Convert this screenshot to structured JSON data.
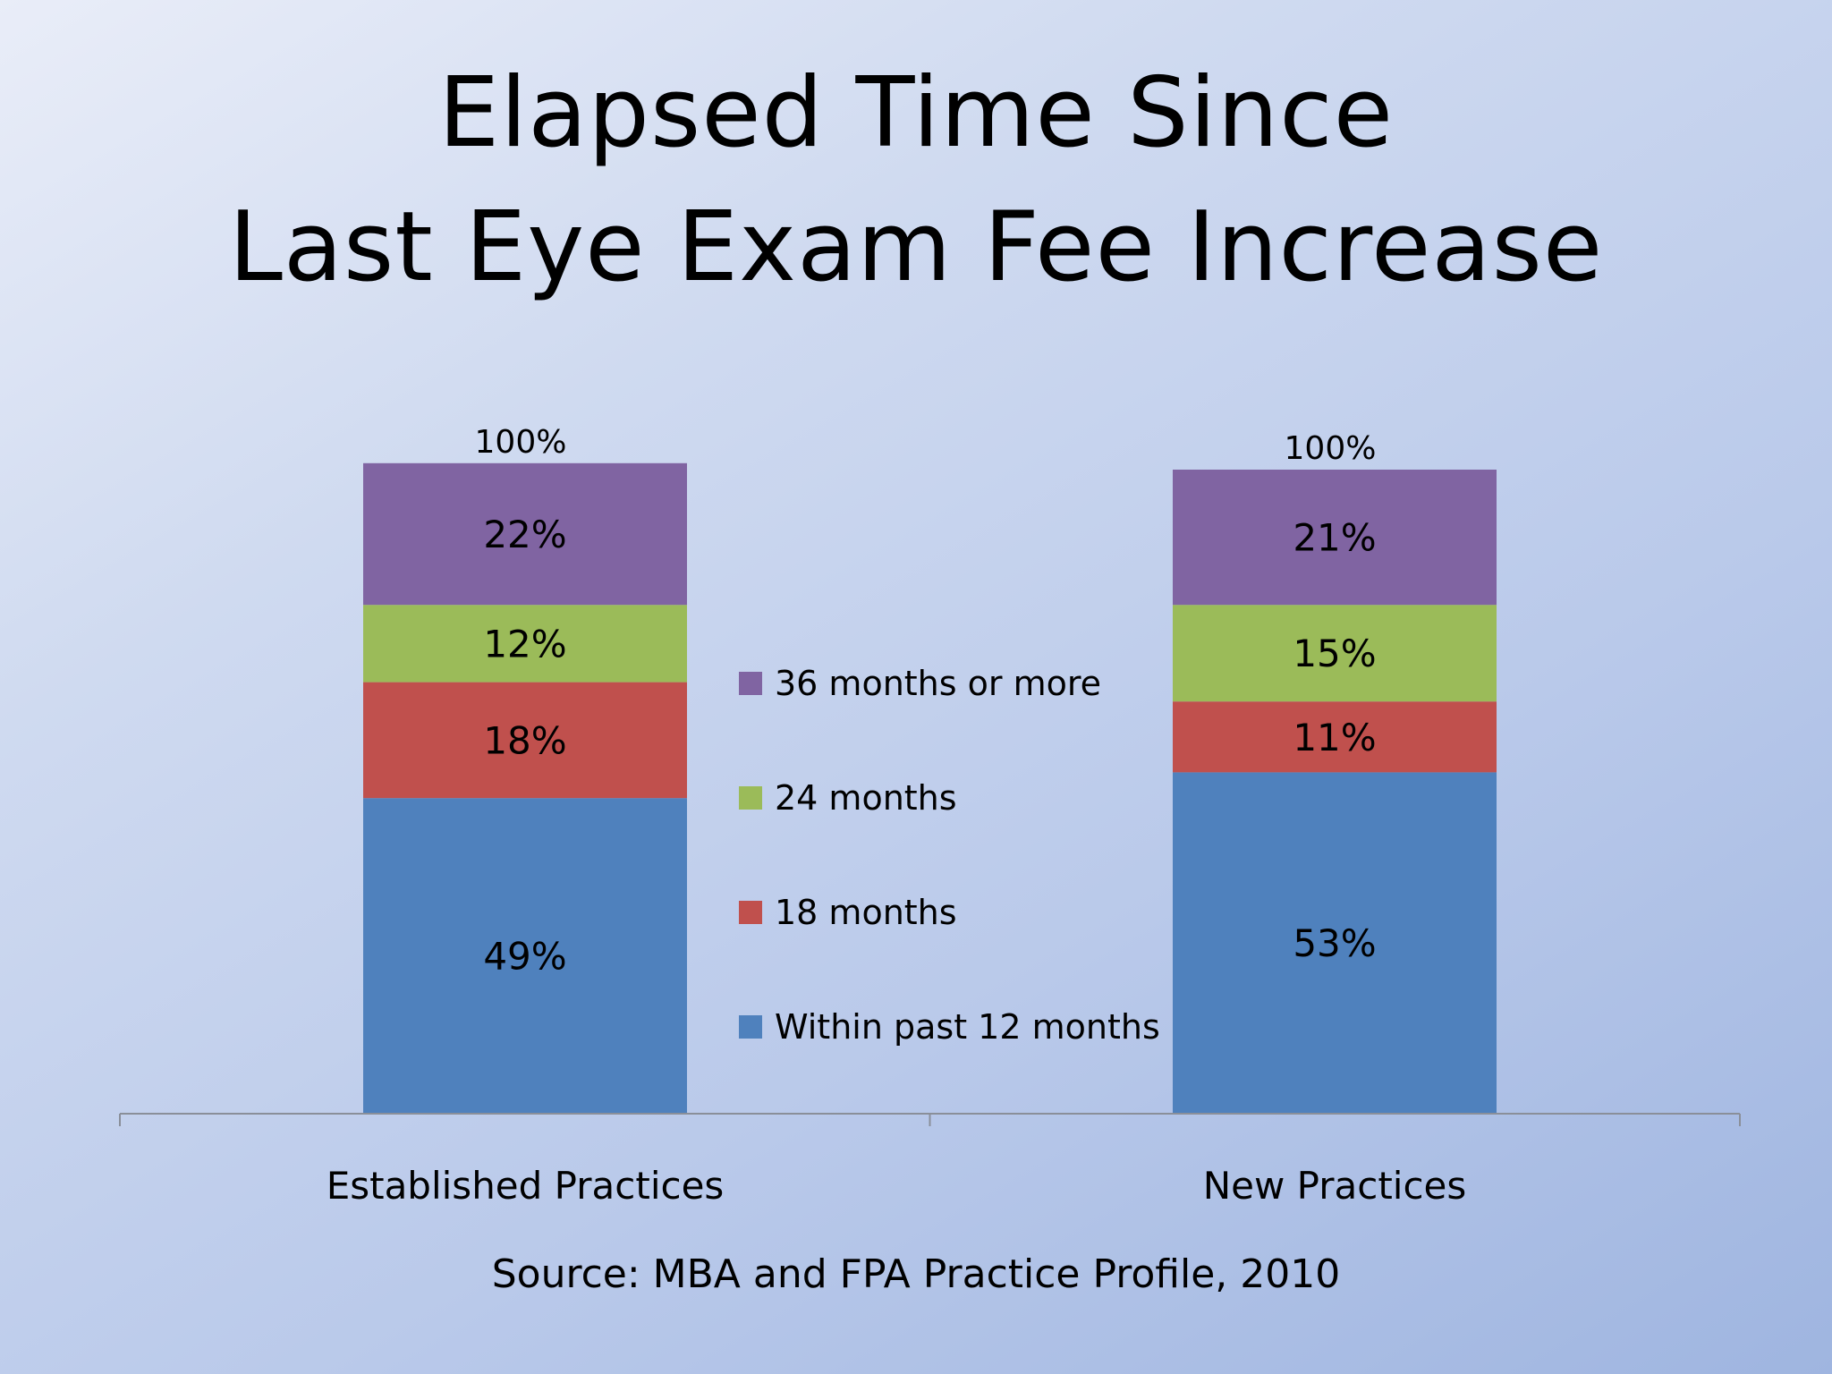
{
  "slide": {
    "title_line1": "Elapsed Time Since",
    "title_line2": "Last Eye Exam Fee Increase",
    "source": "Source: MBA and FPA Practice Profile, 2010"
  },
  "chart_data": {
    "type": "bar",
    "stacked": true,
    "categories": [
      "Established Practices",
      "New Practices"
    ],
    "series": [
      {
        "name": "Within past 12 months",
        "values": [
          49,
          53
        ],
        "labels": [
          "49%",
          "53%"
        ],
        "color": "#4f81bd"
      },
      {
        "name": "18 months",
        "values": [
          18,
          11
        ],
        "labels": [
          "18%",
          "11%"
        ],
        "color": "#c0504d"
      },
      {
        "name": "24 months",
        "values": [
          12,
          15
        ],
        "labels": [
          "12%",
          "15%"
        ],
        "color": "#9bbb59"
      },
      {
        "name": "36 months or more",
        "values": [
          22,
          21
        ],
        "labels": [
          "22%",
          "21%"
        ],
        "color": "#8064a2"
      }
    ],
    "totals": [
      "100%",
      "100%"
    ],
    "legend_order": [
      "36 months or more",
      "24 months",
      "18 months",
      "Within past 12 months"
    ],
    "legend_position": "center",
    "ylim": [
      0,
      100
    ],
    "grid": false
  }
}
